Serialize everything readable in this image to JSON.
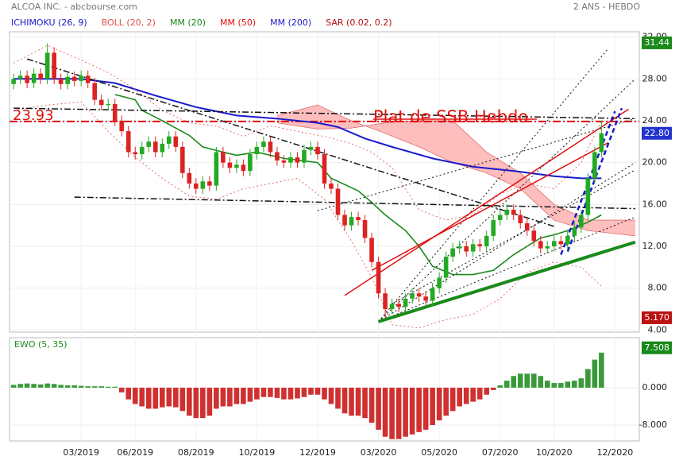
{
  "chart_data": [
    {
      "type": "candlestick",
      "title": "ALCOA INC. - abcbourse.com",
      "period": "2 ANS - HEBDO",
      "annotation": "Plat de SSB Hebdo",
      "legend": [
        {
          "name": "ICHIMOKU (26, 9)",
          "color": "#1a1acc"
        },
        {
          "name": "BOLL (20, 2)",
          "color": "#e05050"
        },
        {
          "name": "MM (20)",
          "color": "#1a8a1a"
        },
        {
          "name": "MM (50)",
          "color": "#e01010"
        },
        {
          "name": "MM (200)",
          "color": "#1a1acc"
        },
        {
          "name": "SAR (0.02, 0.2)",
          "color": "#b01010"
        }
      ],
      "xlim": [
        -0.6,
        92.6
      ],
      "ylim": [
        3.8,
        32.5
      ],
      "xticks": [
        {
          "value": 10,
          "label": "03/2019"
        },
        {
          "value": 18,
          "label": "06/2019"
        },
        {
          "value": 27,
          "label": "08/2019"
        },
        {
          "value": 36,
          "label": "10/2019"
        },
        {
          "value": 45,
          "label": "12/2019"
        },
        {
          "value": 54,
          "label": "03/2020"
        },
        {
          "value": 63,
          "label": "05/2020"
        },
        {
          "value": 72,
          "label": "07/2020"
        },
        {
          "value": 80,
          "label": "10/2020"
        },
        {
          "value": 89,
          "label": "12/2020"
        }
      ],
      "yticks": [
        {
          "value": 4,
          "label": "4.00"
        },
        {
          "value": 8,
          "label": "8.00"
        },
        {
          "value": 12,
          "label": "12.00"
        },
        {
          "value": 16,
          "label": "16.00"
        },
        {
          "value": 20,
          "label": "20.00"
        },
        {
          "value": 24,
          "label": "24.00"
        },
        {
          "value": 28,
          "label": "28.00"
        },
        {
          "value": 32,
          "label": "32.00"
        }
      ],
      "grid": true,
      "up_color": "#22aa22",
      "down_color": "#dd2222",
      "ohlc": [
        [
          27.5,
          28.5,
          27.0,
          28.0
        ],
        [
          28.0,
          28.8,
          27.5,
          28.3
        ],
        [
          28.3,
          28.8,
          27.1,
          27.6
        ],
        [
          27.6,
          29.0,
          27.1,
          28.5
        ],
        [
          28.5,
          29.0,
          27.5,
          28.0
        ],
        [
          28.0,
          31.4,
          27.5,
          30.5
        ],
        [
          30.5,
          31.0,
          27.5,
          28.0
        ],
        [
          28.0,
          28.5,
          27.0,
          27.5
        ],
        [
          27.5,
          28.7,
          27.0,
          28.2
        ],
        [
          28.2,
          28.7,
          27.3,
          27.8
        ],
        [
          27.8,
          28.8,
          27.3,
          28.3
        ],
        [
          28.3,
          28.8,
          27.1,
          27.6
        ],
        [
          27.6,
          28.1,
          25.5,
          26.0
        ],
        [
          26.0,
          26.5,
          25.0,
          25.5
        ],
        [
          25.5,
          26.1,
          25.0,
          25.6
        ],
        [
          25.6,
          26.1,
          23.5,
          24.0
        ],
        [
          24.0,
          24.5,
          22.5,
          23.0
        ],
        [
          23.0,
          23.5,
          20.5,
          21.0
        ],
        [
          21.0,
          21.5,
          20.3,
          20.8
        ],
        [
          20.8,
          22.0,
          20.3,
          21.5
        ],
        [
          21.5,
          22.5,
          21.0,
          22.0
        ],
        [
          22.0,
          22.5,
          20.5,
          21.0
        ],
        [
          21.0,
          22.3,
          20.5,
          21.8
        ],
        [
          21.8,
          23.0,
          21.3,
          22.5
        ],
        [
          22.5,
          23.0,
          21.0,
          21.5
        ],
        [
          21.5,
          22.0,
          18.5,
          19.0
        ],
        [
          19.0,
          19.5,
          17.5,
          18.0
        ],
        [
          18.0,
          18.5,
          17.0,
          17.5
        ],
        [
          17.5,
          18.7,
          17.0,
          18.2
        ],
        [
          18.2,
          18.7,
          17.3,
          17.8
        ],
        [
          17.8,
          21.5,
          17.3,
          21.0
        ],
        [
          21.0,
          21.5,
          19.5,
          20.0
        ],
        [
          20.0,
          20.5,
          19.0,
          19.5
        ],
        [
          19.5,
          20.3,
          19.0,
          19.8
        ],
        [
          19.8,
          20.3,
          18.7,
          19.2
        ],
        [
          19.2,
          21.3,
          18.7,
          20.8
        ],
        [
          20.8,
          22.0,
          20.3,
          21.5
        ],
        [
          21.5,
          22.5,
          21.0,
          22.0
        ],
        [
          22.0,
          22.5,
          20.5,
          21.0
        ],
        [
          21.0,
          21.5,
          19.7,
          20.2
        ],
        [
          20.2,
          20.7,
          19.5,
          20.0
        ],
        [
          20.0,
          21.0,
          19.5,
          20.5
        ],
        [
          20.5,
          21.0,
          19.5,
          20.0
        ],
        [
          20.0,
          21.7,
          19.5,
          21.2
        ],
        [
          21.2,
          22.0,
          20.7,
          21.5
        ],
        [
          21.5,
          22.0,
          20.3,
          20.8
        ],
        [
          20.8,
          21.3,
          17.5,
          18.0
        ],
        [
          18.0,
          18.5,
          17.0,
          17.5
        ],
        [
          17.5,
          18.0,
          14.5,
          15.0
        ],
        [
          15.0,
          15.5,
          13.5,
          14.0
        ],
        [
          14.0,
          15.3,
          13.5,
          14.8
        ],
        [
          14.8,
          15.3,
          14.0,
          14.5
        ],
        [
          14.5,
          15.0,
          12.3,
          12.8
        ],
        [
          12.8,
          13.3,
          10.0,
          10.5
        ],
        [
          10.5,
          11.0,
          7.0,
          7.5
        ],
        [
          7.5,
          8.0,
          5.2,
          6.0
        ],
        [
          6.0,
          7.0,
          5.5,
          6.5
        ],
        [
          6.5,
          7.0,
          5.7,
          6.2
        ],
        [
          6.2,
          7.5,
          5.7,
          7.0
        ],
        [
          7.0,
          8.0,
          6.5,
          7.5
        ],
        [
          7.5,
          8.0,
          6.7,
          7.2
        ],
        [
          7.2,
          7.7,
          6.3,
          6.8
        ],
        [
          6.8,
          8.5,
          6.3,
          8.0
        ],
        [
          8.0,
          9.5,
          7.5,
          9.0
        ],
        [
          9.0,
          11.5,
          8.5,
          11.0
        ],
        [
          11.0,
          12.3,
          10.5,
          11.8
        ],
        [
          11.8,
          12.5,
          11.3,
          12.0
        ],
        [
          12.0,
          12.5,
          11.0,
          11.5
        ],
        [
          11.5,
          12.7,
          11.0,
          12.2
        ],
        [
          12.2,
          12.7,
          11.5,
          12.0
        ],
        [
          12.0,
          13.5,
          11.5,
          13.0
        ],
        [
          13.0,
          15.0,
          12.5,
          14.5
        ],
        [
          14.5,
          15.5,
          14.0,
          15.0
        ],
        [
          15.0,
          16.0,
          14.5,
          15.5
        ],
        [
          15.5,
          16.0,
          14.5,
          15.0
        ],
        [
          15.0,
          15.5,
          13.7,
          14.2
        ],
        [
          14.2,
          14.7,
          13.0,
          13.5
        ],
        [
          13.5,
          14.0,
          12.0,
          12.5
        ],
        [
          12.5,
          13.0,
          11.3,
          11.8
        ],
        [
          11.8,
          12.5,
          11.3,
          12.0
        ],
        [
          12.0,
          13.0,
          11.5,
          12.5
        ],
        [
          12.5,
          13.0,
          11.7,
          12.2
        ],
        [
          12.2,
          13.5,
          11.7,
          13.0
        ],
        [
          13.0,
          14.3,
          12.5,
          13.8
        ],
        [
          13.8,
          15.5,
          13.3,
          15.0
        ],
        [
          15.0,
          19.0,
          14.5,
          18.5
        ],
        [
          18.5,
          21.5,
          18.0,
          21.0
        ],
        [
          21.0,
          24.0,
          20.5,
          22.8
        ]
      ],
      "cloud": {
        "color": "#ffb3b3",
        "edge": "#e07070",
        "x": [
          39,
          45,
          50,
          55,
          60,
          65,
          70,
          75,
          80,
          85,
          92
        ],
        "span_a": [
          24.5,
          25.5,
          24.0,
          22.8,
          21.5,
          20.0,
          19.0,
          17.5,
          14.5,
          13.5,
          13.0
        ],
        "span_b": [
          23.8,
          23.2,
          23.3,
          23.8,
          24.0,
          24.0,
          21.0,
          19.0,
          16.0,
          14.5,
          14.5
        ]
      },
      "series": [
        {
          "color": "#1a1acc",
          "width": 2,
          "style": "solid",
          "x": [
            0,
            10,
            15,
            21,
            27,
            33,
            39,
            45,
            48,
            52,
            56,
            62,
            68,
            74,
            80,
            84,
            87
          ],
          "values": [
            28,
            28,
            27.6,
            26.4,
            25.3,
            24.5,
            24.2,
            23.8,
            23.4,
            22.3,
            21.5,
            20.4,
            19.6,
            19.2,
            18.7,
            18.5,
            18.5
          ]
        },
        {
          "color": "#1a8a1a",
          "width": 1.6,
          "style": "solid",
          "x": [
            15,
            18,
            19,
            22,
            26,
            28,
            31,
            33,
            36,
            40,
            45,
            47,
            51,
            53,
            55,
            58,
            60,
            62,
            65,
            68,
            71,
            74,
            78,
            80,
            82,
            85,
            87
          ],
          "values": [
            26.5,
            26,
            25,
            24,
            22.6,
            21.5,
            21,
            20.7,
            21,
            20.4,
            20,
            18.5,
            17.3,
            16.2,
            15,
            13.5,
            12,
            10.1,
            9.3,
            9.3,
            9.7,
            11.2,
            12.8,
            13.1,
            13.5,
            14.3,
            15
          ]
        },
        {
          "color": "#e05050",
          "width": 0.8,
          "style": "dotted",
          "x": [
            0,
            5,
            10,
            14,
            18,
            22,
            26,
            30,
            34,
            38,
            42,
            46,
            50,
            53,
            56,
            60,
            64,
            68,
            72,
            76,
            80,
            84,
            87
          ],
          "values": [
            29.5,
            31.2,
            29.8,
            28.6,
            27,
            25,
            23.8,
            23.5,
            22.5,
            23.5,
            23,
            22.5,
            21.8,
            21,
            19.5,
            15.5,
            14.5,
            15,
            17,
            18,
            17.5,
            20,
            24
          ]
        },
        {
          "color": "#e05050",
          "width": 0.8,
          "style": "dotted",
          "x": [
            0,
            5,
            10,
            14,
            18,
            22,
            26,
            30,
            34,
            38,
            42,
            46,
            50,
            53,
            56,
            60,
            64,
            68,
            72,
            76,
            80,
            84,
            87
          ],
          "values": [
            25,
            25.5,
            25.8,
            23,
            20.5,
            18.5,
            16.8,
            16.5,
            17.5,
            18,
            18.5,
            16.5,
            12.5,
            9,
            4.5,
            4.2,
            5,
            5.5,
            7,
            9.5,
            10.5,
            10,
            8.2
          ]
        }
      ],
      "trendlines": [
        {
          "color": "#111111",
          "width": 1.5,
          "style": "dashdot",
          "points": [
            [
              2,
              29.9
            ],
            [
              80,
              13.9
            ]
          ]
        },
        {
          "color": "#111111",
          "width": 1.5,
          "style": "dashdot",
          "points": [
            [
              0,
              25.2
            ],
            [
              92,
              24.2
            ]
          ]
        },
        {
          "color": "#111111",
          "width": 1.5,
          "style": "dashdot",
          "points": [
            [
              9,
              16.7
            ],
            [
              92,
              15.6
            ]
          ]
        },
        {
          "color": "#111111",
          "width": 1,
          "style": "dotted",
          "points": [
            [
              54,
              4.8
            ],
            [
              88,
              30.9
            ]
          ]
        },
        {
          "color": "#111111",
          "width": 1,
          "style": "dotted",
          "points": [
            [
              54,
              4.8
            ],
            [
              92,
              28
            ]
          ]
        },
        {
          "color": "#111111",
          "width": 1,
          "style": "dotted",
          "points": [
            [
              54,
              4.8
            ],
            [
              92,
              20
            ]
          ]
        },
        {
          "color": "#111111",
          "width": 1,
          "style": "dotted",
          "points": [
            [
              54,
              4.8
            ],
            [
              92,
              14.8
            ]
          ]
        },
        {
          "color": "#111111",
          "width": 1,
          "style": "dotted",
          "points": [
            [
              45,
              15.4
            ],
            [
              92,
              24.2
            ]
          ]
        },
        {
          "color": "#111111",
          "width": 1,
          "style": "dotted",
          "points": [
            [
              56,
              6.5
            ],
            [
              92,
              19.3
            ]
          ]
        },
        {
          "color": "#e01010",
          "width": 1.5,
          "style": "solid",
          "points": [
            [
              49,
              7.3
            ],
            [
              91,
              25.1
            ]
          ]
        },
        {
          "color": "#e01010",
          "width": 1.5,
          "style": "solid",
          "points": [
            [
              53,
              9.7
            ],
            [
              88,
              21.9
            ]
          ]
        },
        {
          "color": "#1a8a1a",
          "width": 4,
          "style": "solid",
          "points": [
            [
              54,
              4.8
            ],
            [
              92,
              12.4
            ]
          ]
        },
        {
          "color": "#1a1acc",
          "width": 2.5,
          "style": "dashed",
          "points": [
            [
              81,
              11.2
            ],
            [
              89,
              24.9
            ]
          ]
        },
        {
          "color": "#1a1acc",
          "width": 2.5,
          "style": "dashed",
          "points": [
            [
              82,
              11.5
            ],
            [
              90,
              25.2
            ]
          ]
        }
      ],
      "level": {
        "value": 23.93,
        "label": "23.93",
        "color": "#e01010"
      },
      "markers": [
        {
          "value": 31.44,
          "label": "31.44",
          "color": "#1a8a1a"
        },
        {
          "value": 22.8,
          "label": "22.80",
          "color": "#2233cc"
        },
        {
          "value": 5.17,
          "label": "5.170",
          "color": "#bb1111"
        }
      ]
    },
    {
      "type": "bar",
      "title": "EWO (5, 35)",
      "title_color": "#1a8a1a",
      "xlim": [
        -0.6,
        92.6
      ],
      "ylim": [
        -11.4,
        10.7
      ],
      "yticks": [
        {
          "value": 0,
          "label": "0.000"
        },
        {
          "value": -8,
          "label": "-8.000"
        }
      ],
      "up_color": "#3a9a3a",
      "down_color": "#d03030",
      "values": [
        0.6,
        0.8,
        0.9,
        0.8,
        0.7,
        0.9,
        0.8,
        0.6,
        0.5,
        0.5,
        0.4,
        0.3,
        0.3,
        0.3,
        0.2,
        0.2,
        -1,
        -2.5,
        -3.5,
        -4,
        -4.5,
        -4.5,
        -4.2,
        -4,
        -4.2,
        -5,
        -6,
        -6.5,
        -6.5,
        -6,
        -4.5,
        -4,
        -4,
        -3.5,
        -3.5,
        -3,
        -2.5,
        -2,
        -2,
        -2.2,
        -2.5,
        -2.5,
        -2.3,
        -2,
        -1.5,
        -1.5,
        -2.5,
        -3.5,
        -4.5,
        -5.5,
        -6,
        -6,
        -6.5,
        -7.5,
        -9,
        -10.5,
        -11,
        -11,
        -10.5,
        -10,
        -9.5,
        -9,
        -8,
        -7,
        -6,
        -5,
        -4,
        -3.5,
        -3,
        -2.5,
        -1.5,
        -0.5,
        0.5,
        1.5,
        2.5,
        3,
        3,
        3,
        2.5,
        1.5,
        1,
        1,
        1.3,
        1.5,
        2,
        4,
        6,
        7.5
      ],
      "markers": [
        {
          "value": 7.508,
          "label": "7.508",
          "color": "#1a8a1a"
        }
      ]
    }
  ]
}
